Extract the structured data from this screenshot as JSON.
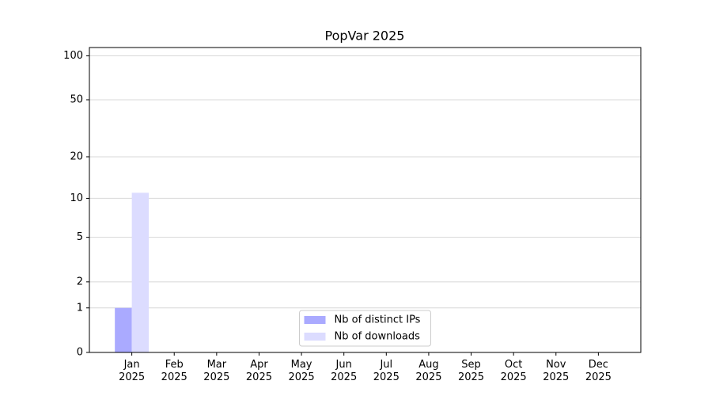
{
  "chart_data": {
    "type": "bar",
    "title": "PopVar 2025",
    "categories": [
      "Jan\n2025",
      "Feb\n2025",
      "Mar\n2025",
      "Apr\n2025",
      "May\n2025",
      "Jun\n2025",
      "Jul\n2025",
      "Aug\n2025",
      "Sep\n2025",
      "Oct\n2025",
      "Nov\n2025",
      "Dec\n2025"
    ],
    "series": [
      {
        "name": "Nb of distinct IPs",
        "color": "#aaaaff",
        "values": [
          1,
          0,
          0,
          0,
          0,
          0,
          0,
          0,
          0,
          0,
          0,
          0
        ]
      },
      {
        "name": "Nb of downloads",
        "color": "#dcdcff",
        "values": [
          11,
          0,
          0,
          0,
          0,
          0,
          0,
          0,
          0,
          0,
          0,
          0
        ]
      }
    ],
    "yscale": "log1p",
    "ylim": [
      0,
      114
    ],
    "yticks": [
      0,
      1,
      2,
      5,
      10,
      20,
      50,
      100
    ],
    "grid": true,
    "legend": "lower center"
  }
}
